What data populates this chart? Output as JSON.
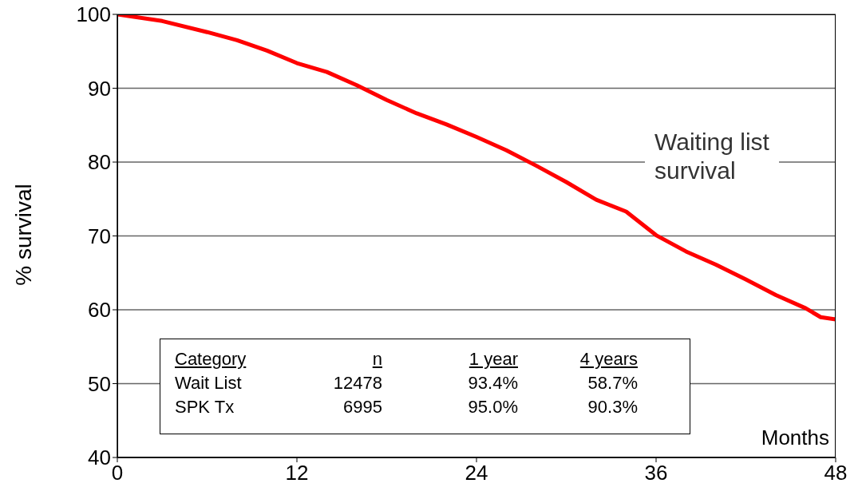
{
  "chart_data": {
    "type": "line",
    "xlabel": "Months",
    "ylabel": "% survival",
    "x": [
      0,
      3,
      6,
      8,
      10,
      12,
      14,
      16,
      18,
      20,
      22,
      24,
      26,
      28,
      30,
      32,
      34,
      36,
      38,
      40,
      42,
      44,
      46,
      47,
      48
    ],
    "series": [
      {
        "name": "Waiting list survival",
        "color": "#ff0000",
        "values": [
          100,
          99.1,
          97.6,
          96.5,
          95.1,
          93.4,
          92.2,
          90.4,
          88.4,
          86.6,
          85.1,
          83.4,
          81.6,
          79.5,
          77.3,
          74.9,
          73.3,
          70.1,
          67.9,
          66.1,
          64.1,
          62,
          60.2,
          59,
          58.7
        ]
      }
    ],
    "xlim": [
      0,
      48
    ],
    "xticks": [
      0,
      12,
      24,
      36,
      48
    ],
    "ylim": [
      40,
      100
    ],
    "yticks": [
      40,
      50,
      60,
      70,
      80,
      90,
      100
    ],
    "grid": "y",
    "marker": "none",
    "line_style": "solid",
    "annotations": [
      "Category",
      "n",
      "1 year",
      "4 years",
      "Wait List",
      "12478",
      "93.4%",
      "58.7%",
      "SPK Tx",
      "6995",
      "95.0%",
      "90.3%"
    ]
  }
}
